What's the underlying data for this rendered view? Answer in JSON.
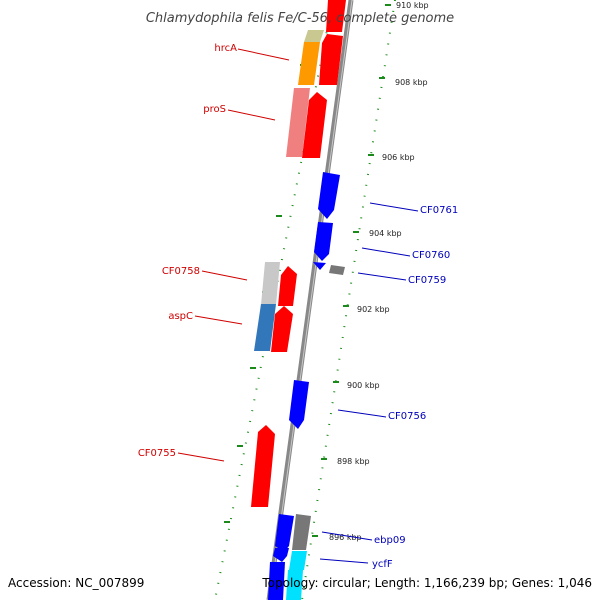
{
  "title": "Chlamydophila felis Fe/C-56, complete genome",
  "footer": {
    "accession": "Accession: NC_007899",
    "stats": "Topology: circular; Length: 1,166,239 bp; Genes: 1,046"
  },
  "scale_ticks": [
    "910 kbp",
    "908 kbp",
    "906 kbp",
    "904 kbp",
    "902 kbp",
    "900 kbp",
    "898 kbp",
    "896 kbp"
  ],
  "gene_labels": {
    "left": [
      "hrcA",
      "proS",
      "CF0758",
      "aspC",
      "CF0755"
    ],
    "right": [
      "CF0761",
      "CF0760",
      "CF0759",
      "CF0756",
      "ebp09",
      "ycfF"
    ]
  },
  "colors": {
    "forward_gene": "#ff0000",
    "reverse_gene": "#0000ff",
    "backbone": "#888888",
    "dots": "#1a8a1a"
  }
}
